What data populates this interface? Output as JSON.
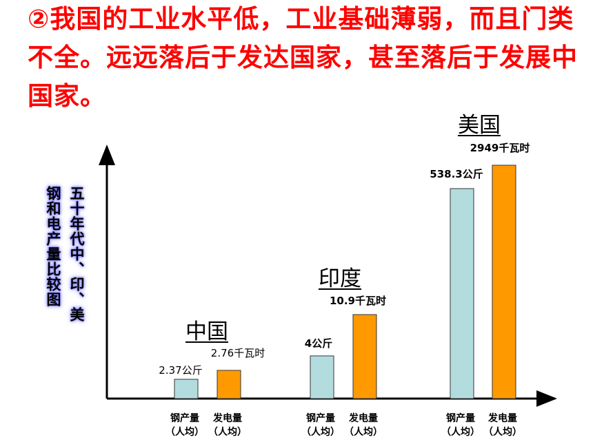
{
  "headline": "②我国的工业水平低，工业基础薄弱，而且门类不全。远远落后于发达国家，甚至落后于发展中国家。",
  "vertical_title": [
    "五十年代中、印、美",
    "钢和电产量比较图"
  ],
  "colors": {
    "headline": "#ff0000",
    "steel": "#b3dcdf",
    "power": "#ff9900",
    "axis": "#000000",
    "title_glow": "#7b7bff"
  },
  "chart_data": {
    "type": "bar",
    "groups": [
      {
        "country": "中国",
        "steel_label": "2.37公斤",
        "power_label": "2.76千瓦时",
        "steel_value": 2.37,
        "power_value": 2.76
      },
      {
        "country": "印度",
        "steel_label": "4公斤",
        "power_label": "10.9千瓦时",
        "steel_value": 4,
        "power_value": 10.9
      },
      {
        "country": "美国",
        "steel_label": "538.3公斤",
        "power_label": "2949千瓦时",
        "steel_value": 538.3,
        "power_value": 2949
      }
    ],
    "x_labels": [
      {
        "line1": "钢产量",
        "line2": "（人均）"
      },
      {
        "line1": "发电量",
        "line2": "（人均）"
      }
    ],
    "note": "Bar heights are not drawn to scale in the original figure",
    "grid": false
  }
}
